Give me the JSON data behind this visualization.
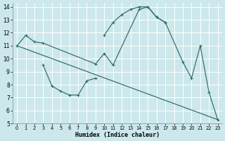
{
  "xlabel": "Humidex (Indice chaleur)",
  "bg_color": "#cce8ec",
  "grid_color": "#ffffff",
  "line_color": "#2d6b62",
  "xlim": [
    -0.5,
    23.5
  ],
  "ylim": [
    5,
    14.3
  ],
  "xticks": [
    0,
    1,
    2,
    3,
    4,
    5,
    6,
    7,
    8,
    9,
    10,
    11,
    12,
    13,
    14,
    15,
    16,
    17,
    18,
    19,
    20,
    21,
    22,
    23
  ],
  "yticks": [
    5,
    6,
    7,
    8,
    9,
    10,
    11,
    12,
    13,
    14
  ],
  "series": [
    {
      "x": [
        0,
        23
      ],
      "y": [
        11.0,
        5.3
      ],
      "markers": false
    },
    {
      "x": [
        0,
        1,
        2,
        3,
        9,
        10,
        11,
        14,
        15,
        16,
        17,
        19,
        20,
        21,
        22,
        23
      ],
      "y": [
        11.0,
        11.8,
        11.3,
        11.2,
        9.6,
        10.4,
        9.5,
        13.8,
        14.0,
        13.2,
        12.8,
        9.75,
        8.5,
        11.0,
        7.4,
        5.3
      ],
      "markers": true
    },
    {
      "x": [
        3,
        4,
        5,
        6,
        7,
        8,
        9
      ],
      "y": [
        9.5,
        7.9,
        7.5,
        7.2,
        7.2,
        8.3,
        8.5
      ],
      "markers": true
    },
    {
      "comment": "peak curve: 10,11.8 to 11,12.8 to 12,13.4 to 13,13.8 peak 14-15,14 then 16,13.2 17,12.8",
      "x": [
        10,
        11,
        12,
        13,
        14,
        15,
        16,
        17
      ],
      "y": [
        11.8,
        12.8,
        13.4,
        13.8,
        14.0,
        14.0,
        13.2,
        12.8
      ],
      "markers": true
    }
  ]
}
